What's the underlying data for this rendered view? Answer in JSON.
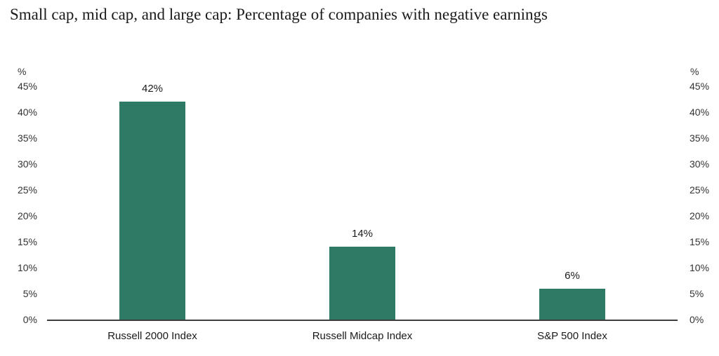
{
  "title": "Small cap, mid cap, and large cap: Percentage of companies with negative earnings",
  "chart_data": {
    "type": "bar",
    "title": "Small cap, mid cap, and large cap: Percentage of companies with negative earnings",
    "categories": [
      "Russell 2000 Index",
      "Russell Midcap Index",
      "S&P 500 Index"
    ],
    "values": [
      42,
      14,
      6
    ],
    "value_labels": [
      "42%",
      "14%",
      "6%"
    ],
    "xlabel": "",
    "ylabel": "%",
    "y_axis_unit": "%",
    "ylim": [
      0,
      45
    ],
    "ytick_values": [
      0,
      5,
      10,
      15,
      20,
      25,
      30,
      35,
      40,
      45
    ],
    "ytick_labels": [
      "0%",
      "5%",
      "10%",
      "15%",
      "20%",
      "25%",
      "30%",
      "35%",
      "40%",
      "45%"
    ],
    "axis_sides": [
      "left",
      "right"
    ],
    "grid": false,
    "legend": "none"
  },
  "colors": {
    "bar": "#2E7A64",
    "axis_line": "#3d3d3d",
    "title_text": "#1b1b1b",
    "tick_text": "#333333",
    "label_text": "#1a1a1a",
    "background": "#ffffff"
  }
}
